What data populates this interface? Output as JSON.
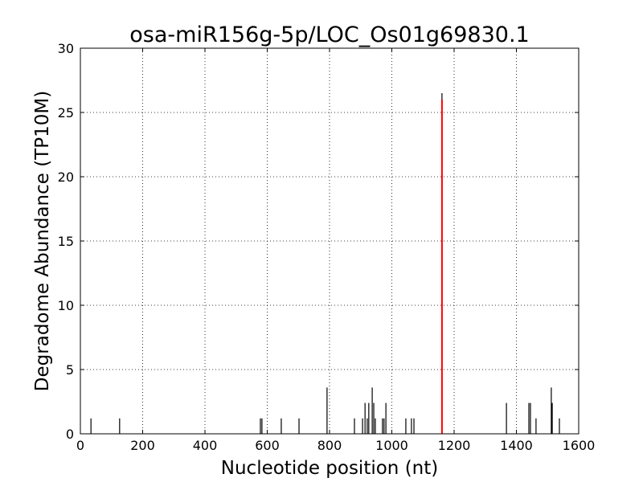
{
  "chart_data": {
    "type": "vlines",
    "title": "osa-miR156g-5p/LOC_Os01g69830.1",
    "x_label": "Nucleotide position (nt)",
    "y_label": "Degradome Abundance (TP10M)",
    "xlim": [
      0,
      1600
    ],
    "xticks": [
      0,
      200,
      400,
      600,
      800,
      1000,
      1200,
      1400,
      1600
    ],
    "ylim": [
      0,
      30
    ],
    "yticks": [
      0,
      5,
      10,
      15,
      20,
      25,
      30
    ],
    "grid": true,
    "series": [
      {
        "color": "#000000",
        "x": [
          34,
          126,
          578,
          583,
          645,
          702,
          792,
          880,
          906,
          914,
          921,
          926,
          937,
          942,
          947,
          970,
          975,
          981,
          1045,
          1063,
          1071,
          1161,
          1368,
          1440,
          1445,
          1463,
          1512,
          1515,
          1538
        ],
        "values": [
          1.2,
          1.2,
          1.2,
          1.2,
          1.2,
          1.2,
          3.6,
          1.2,
          1.2,
          2.4,
          1.2,
          2.4,
          3.6,
          2.4,
          1.2,
          1.2,
          1.2,
          2.4,
          1.2,
          1.2,
          1.2,
          26.5,
          2.4,
          2.4,
          2.4,
          1.2,
          3.6,
          2.4,
          1.2
        ]
      },
      {
        "color": "#ff0000",
        "x": [
          1161
        ],
        "values": [
          26
        ]
      }
    ]
  }
}
